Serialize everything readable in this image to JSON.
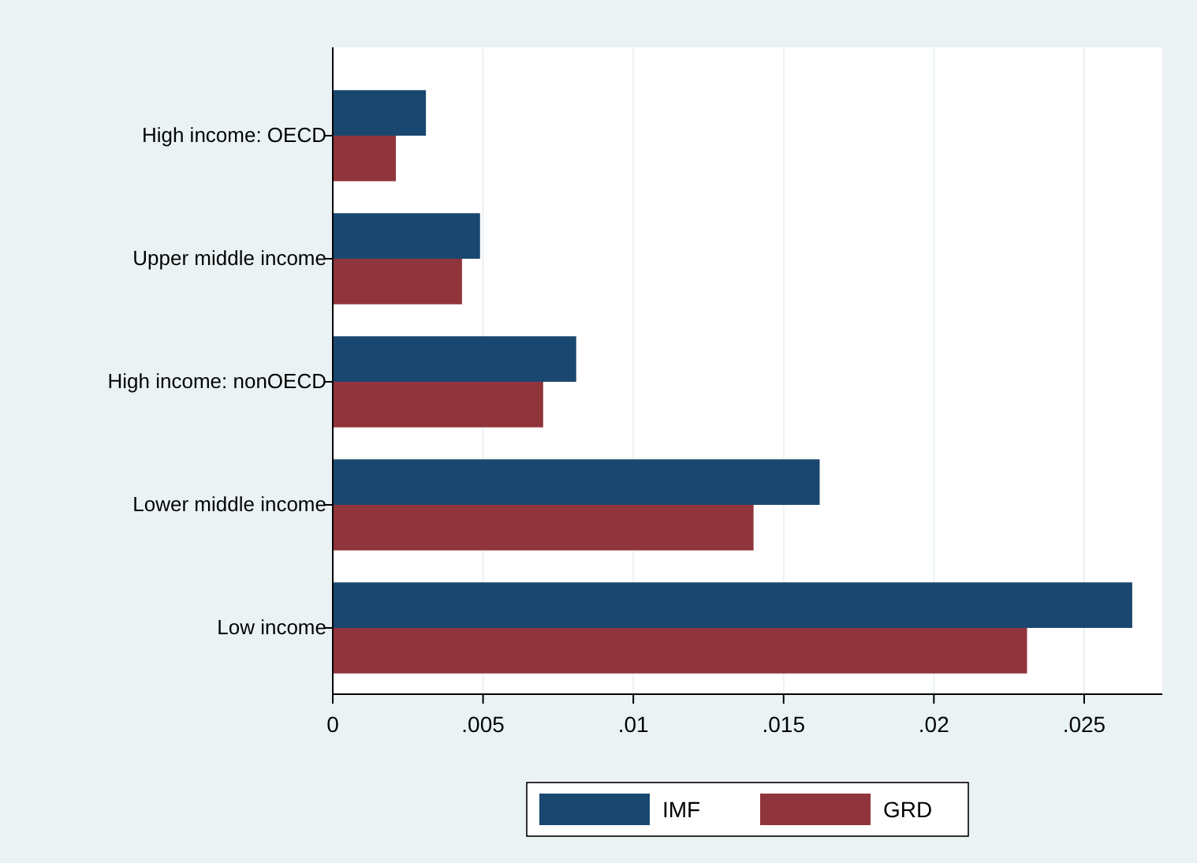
{
  "chart_data": {
    "type": "bar",
    "orientation": "horizontal",
    "categories": [
      "High income: OECD",
      "Upper middle income",
      "High income: nonOECD",
      "Lower middle income",
      "Low income"
    ],
    "series": [
      {
        "name": "IMF",
        "color": "#1a476f",
        "values": [
          0.0031,
          0.0049,
          0.0081,
          0.0162,
          0.0266
        ]
      },
      {
        "name": "GRD",
        "color": "#90353b",
        "values": [
          0.0021,
          0.0043,
          0.007,
          0.014,
          0.0231
        ]
      }
    ],
    "xlim": [
      0,
      0.0276
    ],
    "xticks": [
      0,
      {
        "value": 0.005,
        "label": ".005"
      },
      {
        "value": 0.01,
        "label": ".01"
      },
      {
        "value": 0.015,
        "label": ".015"
      },
      {
        "value": 0.02,
        "label": ".02"
      },
      {
        "value": 0.025,
        "label": ".025"
      }
    ],
    "grid": "x",
    "legend": "bottom"
  }
}
